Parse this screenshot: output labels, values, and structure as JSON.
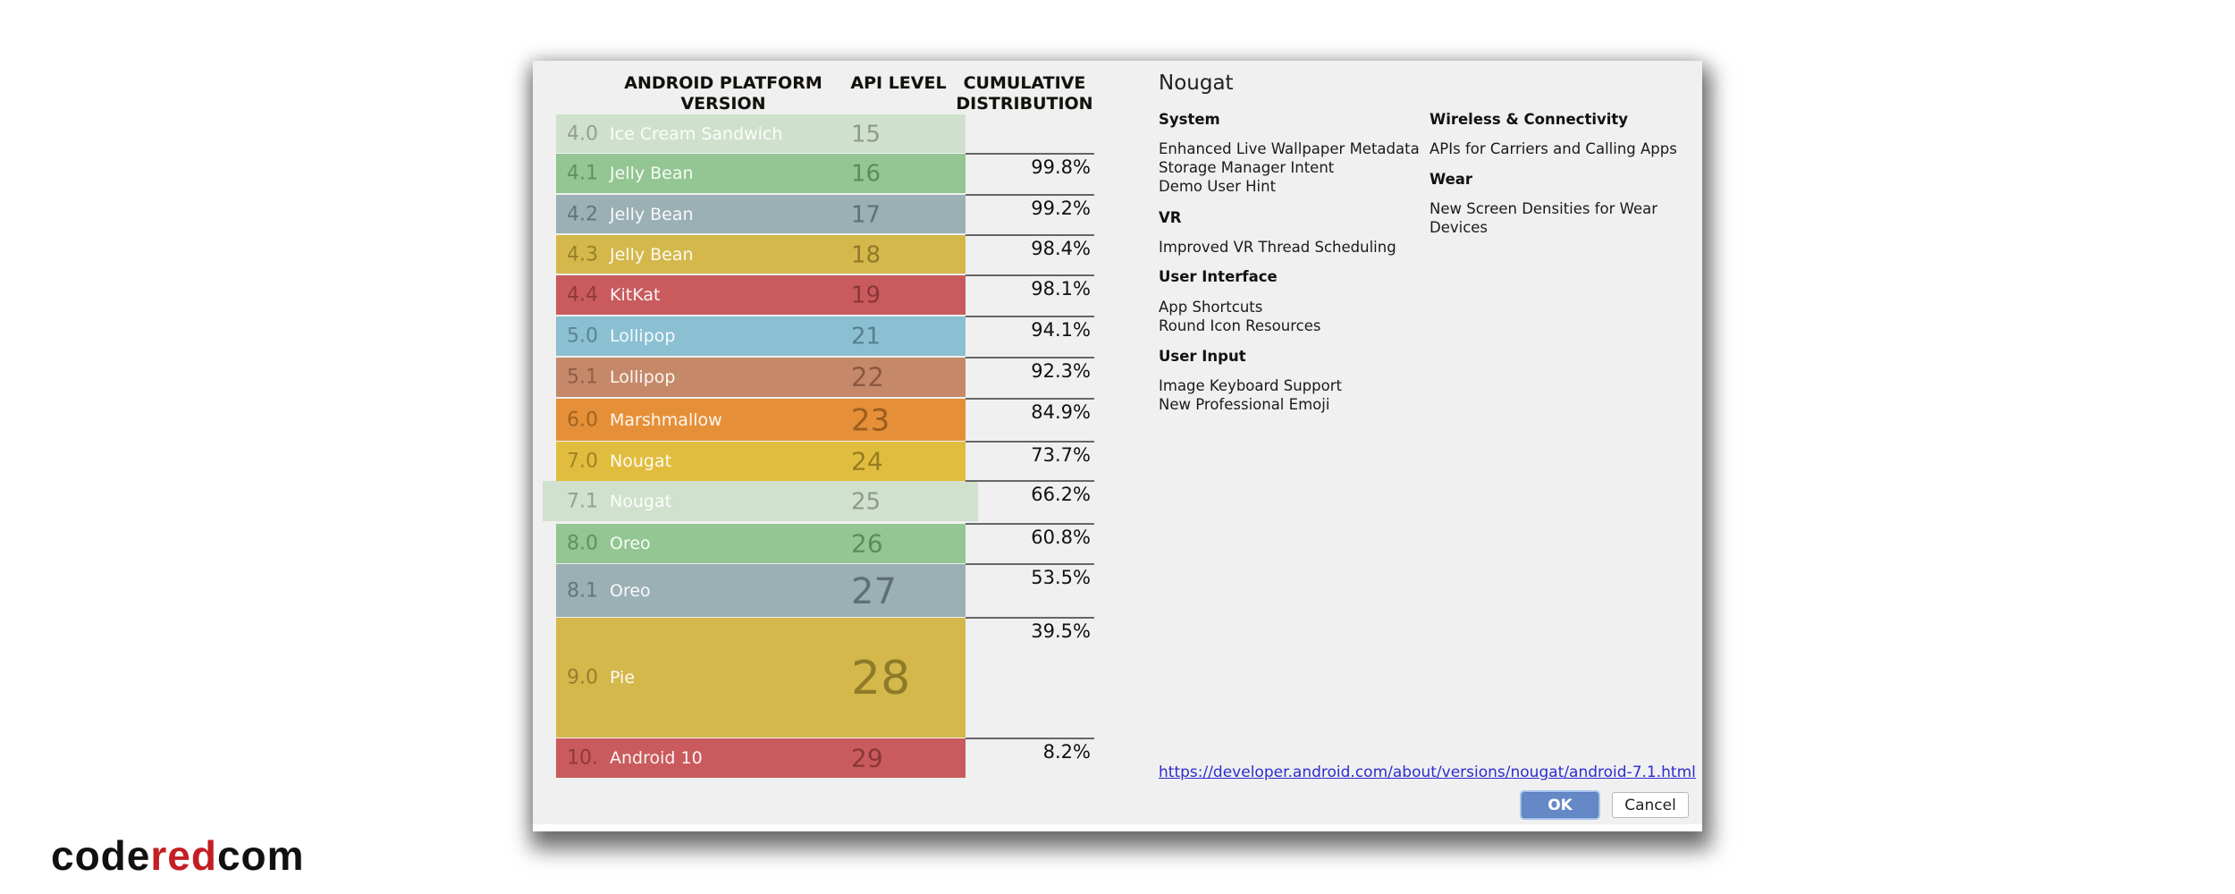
{
  "dialog": {
    "headers": {
      "platform_line1": "ANDROID PLATFORM",
      "platform_line2": "VERSION",
      "api": "API LEVEL",
      "cum_line1": "CUMULATIVE",
      "cum_line2": "DISTRIBUTION"
    },
    "rows": [
      {
        "version": "4.0",
        "name": "Ice Cream Sandwich",
        "api": "15",
        "cumulative": "",
        "color": "#cfe1cc",
        "text_color": "#8f9a8c"
      },
      {
        "version": "4.1",
        "name": "Jelly Bean",
        "api": "16",
        "cumulative": "99.8%",
        "color": "#93c692",
        "text_color": "#5e8a5d"
      },
      {
        "version": "4.2",
        "name": "Jelly Bean",
        "api": "17",
        "cumulative": "99.2%",
        "color": "#9bb0b4",
        "text_color": "#5f7074"
      },
      {
        "version": "4.3",
        "name": "Jelly Bean",
        "api": "18",
        "cumulative": "98.4%",
        "color": "#d4b84b",
        "text_color": "#8f7a28"
      },
      {
        "version": "4.4",
        "name": "KitKat",
        "api": "19",
        "cumulative": "98.1%",
        "color": "#c95b5e",
        "text_color": "#8a3638"
      },
      {
        "version": "5.0",
        "name": "Lollipop",
        "api": "21",
        "cumulative": "94.1%",
        "color": "#8bbfd2",
        "text_color": "#55808f"
      },
      {
        "version": "5.1",
        "name": "Lollipop",
        "api": "22",
        "cumulative": "92.3%",
        "color": "#c5896a",
        "text_color": "#8a5a40"
      },
      {
        "version": "6.0",
        "name": "Marshmallow",
        "api": "23",
        "cumulative": "84.9%",
        "color": "#e59038",
        "text_color": "#9c5e1c"
      },
      {
        "version": "7.0",
        "name": "Nougat",
        "api": "24",
        "cumulative": "73.7%",
        "color": "#e1bd3f",
        "text_color": "#977d20"
      },
      {
        "version": "7.1",
        "name": "Nougat",
        "api": "25",
        "cumulative": "66.2%",
        "color": "#d0e1cd",
        "text_color": "#8f9a8c",
        "selected": true
      },
      {
        "version": "8.0",
        "name": "Oreo",
        "api": "26",
        "cumulative": "60.8%",
        "color": "#93c692",
        "text_color": "#5e8a5d"
      },
      {
        "version": "8.1",
        "name": "Oreo",
        "api": "27",
        "cumulative": "53.5%",
        "color": "#9bb0b4",
        "text_color": "#5f7074"
      },
      {
        "version": "9.0",
        "name": "Pie",
        "api": "28",
        "cumulative": "39.5%",
        "color": "#d4b84b",
        "text_color": "#8f7a28"
      },
      {
        "version": "10.",
        "name": "Android 10",
        "api": "29",
        "cumulative": "8.2%",
        "color": "#c95b5e",
        "text_color": "#8a3638"
      }
    ],
    "info": {
      "title": "Nougat",
      "column1": [
        {
          "heading": "System",
          "items": [
            "Enhanced Live Wallpaper Metadata",
            "Storage Manager Intent",
            "Demo User Hint"
          ]
        },
        {
          "heading": "VR",
          "items": [
            "Improved VR Thread Scheduling"
          ]
        },
        {
          "heading": "User Interface",
          "items": [
            "App Shortcuts",
            "Round Icon Resources"
          ]
        },
        {
          "heading": "User Input",
          "items": [
            "Image Keyboard Support",
            "New Professional Emoji"
          ]
        }
      ],
      "column2": [
        {
          "heading": "Wireless & Connectivity",
          "items": [
            "APIs for Carriers and Calling Apps"
          ]
        },
        {
          "heading": "Wear",
          "items": [
            "New Screen Densities for Wear",
            "Devices"
          ]
        }
      ],
      "link": "https://developer.android.com/about/versions/nougat/android-7.1.html"
    },
    "buttons": {
      "ok": "OK",
      "cancel": "Cancel"
    }
  },
  "watermark": {
    "part1": "code",
    "part2": "red",
    "part3": "com"
  }
}
